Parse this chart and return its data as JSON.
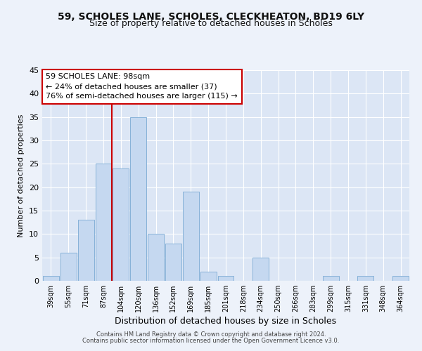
{
  "title": "59, SCHOLES LANE, SCHOLES, CLECKHEATON, BD19 6LY",
  "subtitle": "Size of property relative to detached houses in Scholes",
  "xlabel": "Distribution of detached houses by size in Scholes",
  "ylabel": "Number of detached properties",
  "bin_labels": [
    "39sqm",
    "55sqm",
    "71sqm",
    "87sqm",
    "104sqm",
    "120sqm",
    "136sqm",
    "152sqm",
    "169sqm",
    "185sqm",
    "201sqm",
    "218sqm",
    "234sqm",
    "250sqm",
    "266sqm",
    "283sqm",
    "299sqm",
    "315sqm",
    "331sqm",
    "348sqm",
    "364sqm"
  ],
  "bar_values": [
    1,
    6,
    13,
    25,
    24,
    35,
    10,
    8,
    19,
    2,
    1,
    0,
    5,
    0,
    0,
    0,
    1,
    0,
    1,
    0,
    1
  ],
  "bar_color": "#c5d8f0",
  "bar_edge_color": "#7aaad4",
  "vline_color": "#cc0000",
  "annotation_text": "59 SCHOLES LANE: 98sqm\n← 24% of detached houses are smaller (37)\n76% of semi-detached houses are larger (115) →",
  "annotation_box_color": "#ffffff",
  "annotation_box_edge": "#cc0000",
  "ylim": [
    0,
    45
  ],
  "yticks": [
    0,
    5,
    10,
    15,
    20,
    25,
    30,
    35,
    40,
    45
  ],
  "background_color": "#dce6f5",
  "plot_bg_color": "#dce6f5",
  "fig_bg_color": "#edf2fa",
  "grid_color": "#ffffff",
  "footer_line1": "Contains HM Land Registry data © Crown copyright and database right 2024.",
  "footer_line2": "Contains public sector information licensed under the Open Government Licence v3.0.",
  "title_fontsize": 10,
  "subtitle_fontsize": 9
}
